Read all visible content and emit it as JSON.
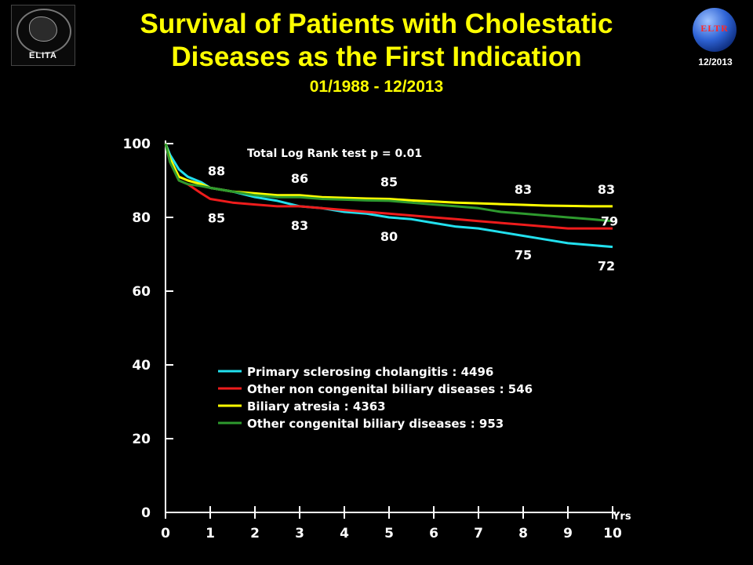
{
  "header": {
    "title_line1": "Survival of Patients with Cholestatic",
    "title_line2": "Diseases as the First Indication",
    "subtitle": "01/1988 - 12/2013",
    "date_label": "12/2013",
    "logo_left_text": "ELITA",
    "logo_right_text": "ELTR"
  },
  "chart_data": {
    "type": "line",
    "title": "Survival of Patients with Cholestatic Diseases as the First Indication",
    "subtitle": "01/1988 - 12/2013",
    "xlabel": "Yrs",
    "ylabel": "",
    "xlim": [
      0,
      10
    ],
    "ylim": [
      0,
      100
    ],
    "x_ticks": [
      0,
      1,
      2,
      3,
      4,
      5,
      6,
      7,
      8,
      9,
      10
    ],
    "y_ticks": [
      0,
      20,
      40,
      60,
      80,
      100
    ],
    "grid": false,
    "annotation": "Total  Log Rank test p = 0.01",
    "legend_position": "bottom-center",
    "series": [
      {
        "name": "Primary sclerosing cholangitis : 4496",
        "color": "#22e0ee",
        "x": [
          0,
          0.1,
          0.3,
          0.5,
          0.8,
          1,
          1.5,
          2,
          2.5,
          3,
          3.5,
          4,
          4.5,
          5,
          5.5,
          6,
          6.5,
          7,
          7.5,
          8,
          8.5,
          9,
          9.5,
          10
        ],
        "values": [
          100,
          97,
          93,
          91,
          89.5,
          88,
          87,
          85.5,
          84.5,
          83,
          82.5,
          81.5,
          81,
          80,
          79.5,
          78.5,
          77.5,
          77,
          76,
          75,
          74,
          73,
          72.5,
          72
        ]
      },
      {
        "name": "Other non congenital biliary diseases : 546",
        "color": "#ee1c1c",
        "x": [
          0,
          0.1,
          0.3,
          0.5,
          0.8,
          1,
          1.5,
          2,
          2.5,
          3,
          3.5,
          4,
          4.5,
          5,
          5.5,
          6,
          6.5,
          7,
          7.5,
          8,
          8.5,
          9,
          9.5,
          10
        ],
        "values": [
          100,
          95,
          90,
          89,
          86.5,
          85,
          84,
          83.5,
          83,
          83,
          82.5,
          82,
          81.5,
          81,
          80.5,
          80,
          79.5,
          79,
          78.5,
          78,
          77.5,
          77,
          77,
          77
        ]
      },
      {
        "name": "Biliary atresia : 4363",
        "color": "#ffff00",
        "x": [
          0,
          0.1,
          0.3,
          0.5,
          0.8,
          1,
          1.5,
          2,
          2.5,
          3,
          3.5,
          4,
          4.5,
          5,
          5.5,
          6,
          6.5,
          7,
          7.5,
          8,
          8.5,
          9,
          9.5,
          10
        ],
        "values": [
          100,
          96,
          91,
          90,
          89,
          88,
          87,
          86.5,
          86,
          86,
          85.5,
          85.3,
          85.1,
          85,
          84.6,
          84.3,
          84,
          83.8,
          83.6,
          83.4,
          83.2,
          83.1,
          83,
          83
        ]
      },
      {
        "name": "Other congenital biliary diseases : 953",
        "color": "#2e9a2e",
        "x": [
          0,
          0.1,
          0.3,
          0.5,
          0.8,
          1,
          1.5,
          2,
          2.5,
          3,
          3.5,
          4,
          4.5,
          5,
          5.5,
          6,
          6.5,
          7,
          7.5,
          8,
          8.5,
          9,
          9.5,
          10
        ],
        "values": [
          100,
          95,
          90,
          89,
          88.5,
          88,
          87,
          86,
          85.5,
          85.5,
          85,
          84.8,
          84.6,
          84.5,
          84,
          83.5,
          83,
          82.5,
          81.5,
          81,
          80.5,
          80,
          79.5,
          79
        ]
      }
    ],
    "data_labels": [
      {
        "text": "88",
        "x": 1,
        "y": 88,
        "side": "above"
      },
      {
        "text": "85",
        "x": 1,
        "y": 85,
        "side": "below"
      },
      {
        "text": "86",
        "x": 3,
        "y": 86,
        "side": "above"
      },
      {
        "text": "83",
        "x": 3,
        "y": 83,
        "side": "below"
      },
      {
        "text": "85",
        "x": 5,
        "y": 85,
        "side": "above"
      },
      {
        "text": "80",
        "x": 5,
        "y": 80,
        "side": "below"
      },
      {
        "text": "83",
        "x": 8,
        "y": 83,
        "side": "above"
      },
      {
        "text": "75",
        "x": 8,
        "y": 75,
        "side": "below"
      },
      {
        "text": "83",
        "x": 10,
        "y": 83,
        "side": "above"
      },
      {
        "text": "79",
        "x": 10,
        "y": 79,
        "side": "right"
      },
      {
        "text": "72",
        "x": 10,
        "y": 72,
        "side": "below"
      }
    ]
  }
}
